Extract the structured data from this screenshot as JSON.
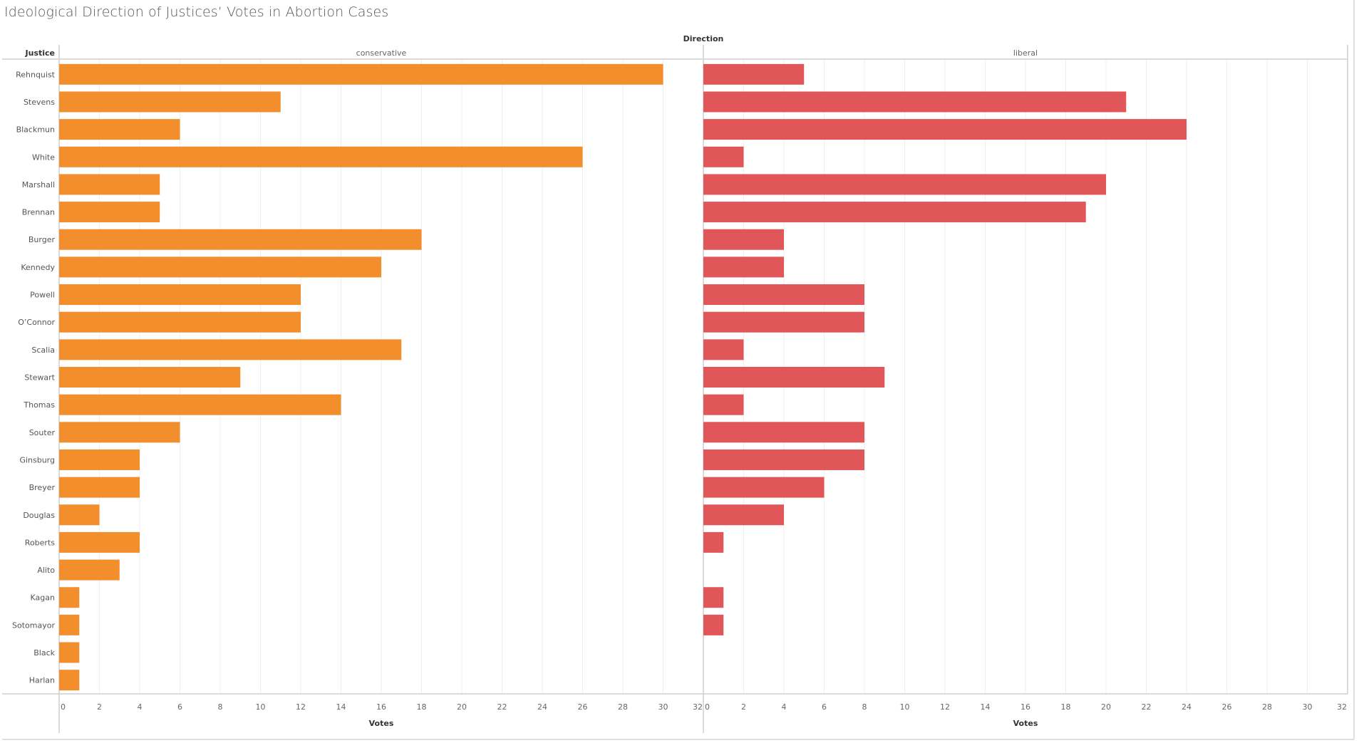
{
  "title": "Ideological Direction of Justices’ Votes in Abortion Cases",
  "chart_data": {
    "type": "bar",
    "orientation": "horizontal",
    "title": "Ideological Direction of Justices’ Votes in Abortion Cases",
    "column_header": "Direction",
    "row_header": "Justice",
    "xlabel": "Votes",
    "xlim": [
      0,
      32
    ],
    "xticks": [
      0,
      2,
      4,
      6,
      8,
      10,
      12,
      14,
      16,
      18,
      20,
      22,
      24,
      26,
      28,
      30,
      32
    ],
    "grid": true,
    "categories": [
      "Rehnquist",
      "Stevens",
      "Blackmun",
      "White",
      "Marshall",
      "Brennan",
      "Burger",
      "Kennedy",
      "Powell",
      "O’Connor",
      "Scalia",
      "Stewart",
      "Thomas",
      "Souter",
      "Ginsburg",
      "Breyer",
      "Douglas",
      "Roberts",
      "Alito",
      "Kagan",
      "Sotomayor",
      "Black",
      "Harlan"
    ],
    "series": [
      {
        "name": "conservative",
        "color": "#F28E2B",
        "values": [
          30,
          11,
          6,
          26,
          5,
          5,
          18,
          16,
          12,
          12,
          17,
          9,
          14,
          6,
          4,
          4,
          2,
          4,
          3,
          1,
          1,
          1,
          1
        ]
      },
      {
        "name": "liberal",
        "color": "#E15759",
        "values": [
          5,
          21,
          24,
          2,
          20,
          19,
          4,
          4,
          8,
          8,
          2,
          9,
          2,
          8,
          8,
          6,
          4,
          1,
          null,
          1,
          1,
          null,
          null
        ]
      }
    ]
  }
}
